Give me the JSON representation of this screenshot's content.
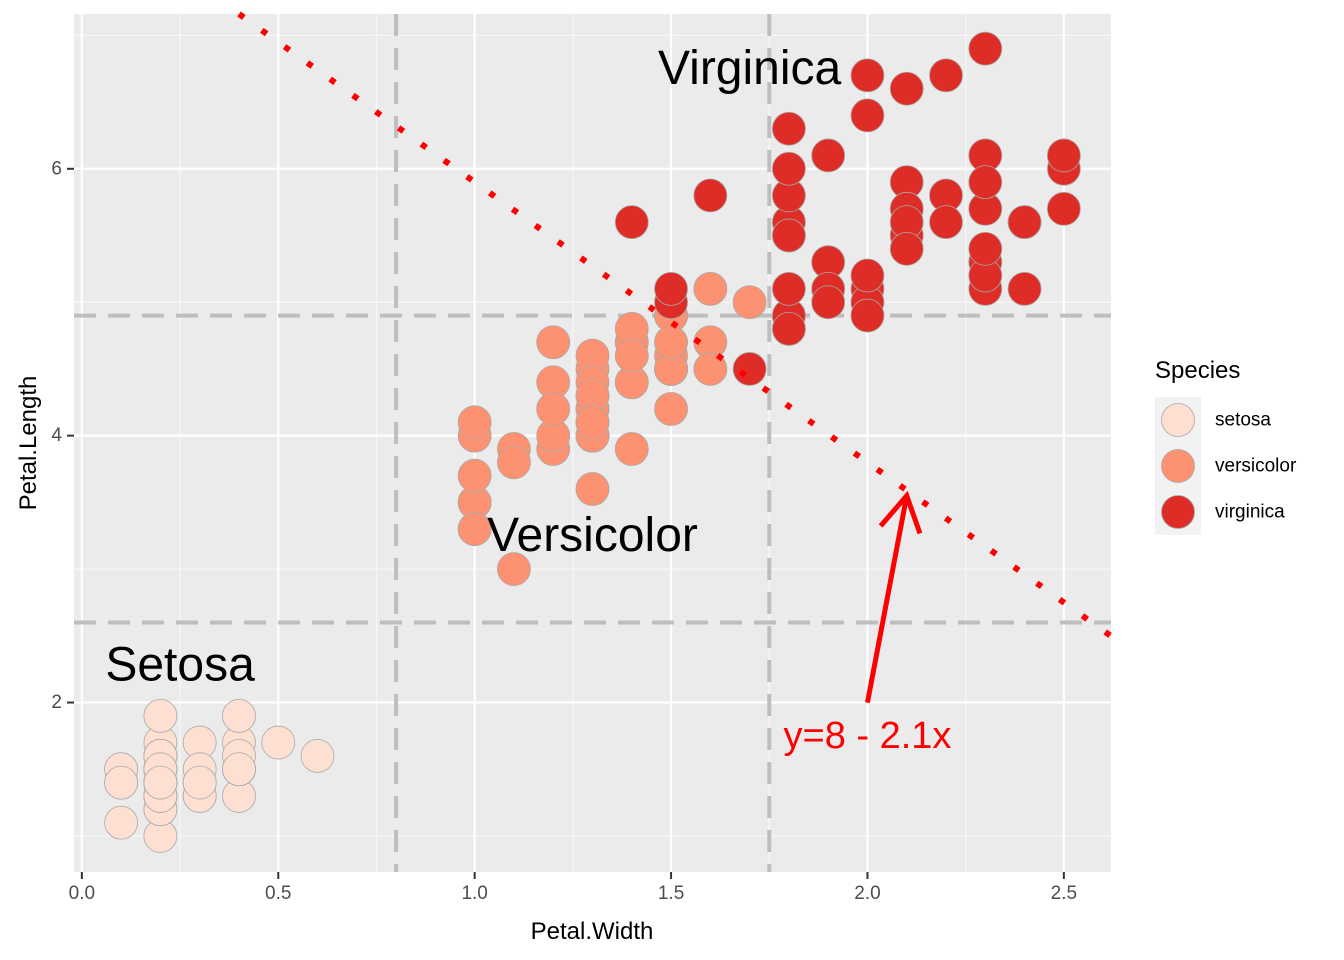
{
  "chart_data": {
    "type": "scatter",
    "xlabel": "Petal.Width",
    "ylabel": "Petal.Length",
    "xlim": [
      -0.02,
      2.62
    ],
    "ylim": [
      0.73,
      7.16
    ],
    "x_ticks": [
      0.0,
      0.5,
      1.0,
      1.5,
      2.0,
      2.5
    ],
    "x_tick_labels": [
      "0.0",
      "0.5",
      "1.0",
      "1.5",
      "2.0",
      "2.5"
    ],
    "y_ticks": [
      2,
      4,
      6
    ],
    "y_tick_labels": [
      "2",
      "4",
      "6"
    ],
    "grid": true,
    "legend": {
      "title": "Species",
      "placement": "right",
      "entries": [
        {
          "label": "setosa",
          "color": "#FEE0D2"
        },
        {
          "label": "versicolor",
          "color": "#FC9272"
        },
        {
          "label": "virginica",
          "color": "#DE2D26"
        }
      ]
    },
    "series": [
      {
        "name": "setosa",
        "color": "#FEE0D2",
        "points": [
          [
            0.2,
            1.4
          ],
          [
            0.2,
            1.4
          ],
          [
            0.2,
            1.3
          ],
          [
            0.2,
            1.5
          ],
          [
            0.2,
            1.4
          ],
          [
            0.4,
            1.7
          ],
          [
            0.3,
            1.4
          ],
          [
            0.2,
            1.5
          ],
          [
            0.2,
            1.4
          ],
          [
            0.1,
            1.5
          ],
          [
            0.2,
            1.5
          ],
          [
            0.2,
            1.6
          ],
          [
            0.1,
            1.4
          ],
          [
            0.1,
            1.1
          ],
          [
            0.2,
            1.2
          ],
          [
            0.4,
            1.5
          ],
          [
            0.4,
            1.3
          ],
          [
            0.3,
            1.4
          ],
          [
            0.3,
            1.7
          ],
          [
            0.3,
            1.5
          ],
          [
            0.2,
            1.7
          ],
          [
            0.4,
            1.5
          ],
          [
            0.2,
            1.0
          ],
          [
            0.5,
            1.7
          ],
          [
            0.2,
            1.9
          ],
          [
            0.2,
            1.6
          ],
          [
            0.4,
            1.6
          ],
          [
            0.2,
            1.5
          ],
          [
            0.2,
            1.4
          ],
          [
            0.2,
            1.6
          ],
          [
            0.2,
            1.6
          ],
          [
            0.4,
            1.5
          ],
          [
            0.1,
            1.5
          ],
          [
            0.2,
            1.4
          ],
          [
            0.2,
            1.5
          ],
          [
            0.2,
            1.2
          ],
          [
            0.2,
            1.3
          ],
          [
            0.1,
            1.4
          ],
          [
            0.2,
            1.3
          ],
          [
            0.2,
            1.5
          ],
          [
            0.3,
            1.3
          ],
          [
            0.3,
            1.3
          ],
          [
            0.2,
            1.3
          ],
          [
            0.6,
            1.6
          ],
          [
            0.4,
            1.9
          ],
          [
            0.3,
            1.4
          ],
          [
            0.2,
            1.6
          ],
          [
            0.2,
            1.4
          ],
          [
            0.2,
            1.5
          ],
          [
            0.2,
            1.4
          ]
        ]
      },
      {
        "name": "versicolor",
        "color": "#FC9272",
        "points": [
          [
            1.4,
            4.7
          ],
          [
            1.5,
            4.5
          ],
          [
            1.5,
            4.9
          ],
          [
            1.3,
            4.0
          ],
          [
            1.5,
            4.6
          ],
          [
            1.3,
            4.5
          ],
          [
            1.6,
            4.7
          ],
          [
            1.0,
            3.3
          ],
          [
            1.3,
            4.6
          ],
          [
            1.4,
            3.9
          ],
          [
            1.0,
            3.5
          ],
          [
            1.5,
            4.2
          ],
          [
            1.0,
            4.0
          ],
          [
            1.4,
            4.7
          ],
          [
            1.3,
            3.6
          ],
          [
            1.4,
            4.4
          ],
          [
            1.5,
            4.5
          ],
          [
            1.0,
            4.1
          ],
          [
            1.5,
            4.5
          ],
          [
            1.1,
            3.9
          ],
          [
            1.8,
            4.8
          ],
          [
            1.3,
            4.0
          ],
          [
            1.5,
            4.9
          ],
          [
            1.2,
            4.7
          ],
          [
            1.3,
            4.3
          ],
          [
            1.4,
            4.4
          ],
          [
            1.4,
            4.8
          ],
          [
            1.7,
            5.0
          ],
          [
            1.5,
            4.5
          ],
          [
            1.0,
            3.5
          ],
          [
            1.1,
            3.8
          ],
          [
            1.0,
            3.7
          ],
          [
            1.2,
            3.9
          ],
          [
            1.6,
            5.1
          ],
          [
            1.5,
            4.5
          ],
          [
            1.6,
            4.5
          ],
          [
            1.5,
            4.7
          ],
          [
            1.3,
            4.4
          ],
          [
            1.3,
            4.1
          ],
          [
            1.3,
            4.0
          ],
          [
            1.2,
            4.4
          ],
          [
            1.4,
            4.6
          ],
          [
            1.2,
            4.0
          ],
          [
            1.0,
            3.3
          ],
          [
            1.3,
            4.2
          ],
          [
            1.2,
            4.2
          ],
          [
            1.3,
            4.2
          ],
          [
            1.3,
            4.3
          ],
          [
            1.1,
            3.0
          ],
          [
            1.3,
            4.1
          ]
        ]
      },
      {
        "name": "virginica",
        "color": "#DE2D26",
        "points": [
          [
            2.5,
            6.0
          ],
          [
            1.9,
            5.1
          ],
          [
            2.1,
            5.9
          ],
          [
            1.8,
            5.6
          ],
          [
            2.2,
            5.8
          ],
          [
            2.1,
            6.6
          ],
          [
            1.7,
            4.5
          ],
          [
            1.8,
            6.3
          ],
          [
            1.8,
            5.8
          ],
          [
            2.5,
            6.1
          ],
          [
            2.0,
            5.1
          ],
          [
            1.9,
            5.3
          ],
          [
            2.1,
            5.5
          ],
          [
            2.0,
            5.0
          ],
          [
            2.4,
            5.1
          ],
          [
            2.3,
            5.3
          ],
          [
            1.8,
            5.5
          ],
          [
            2.2,
            6.7
          ],
          [
            2.3,
            6.9
          ],
          [
            1.5,
            5.0
          ],
          [
            2.3,
            5.7
          ],
          [
            2.0,
            4.9
          ],
          [
            2.0,
            6.7
          ],
          [
            1.8,
            4.9
          ],
          [
            2.1,
            5.7
          ],
          [
            1.8,
            6.0
          ],
          [
            1.8,
            4.8
          ],
          [
            1.8,
            4.9
          ],
          [
            2.1,
            5.6
          ],
          [
            1.6,
            5.8
          ],
          [
            1.9,
            6.1
          ],
          [
            2.0,
            6.4
          ],
          [
            2.2,
            5.6
          ],
          [
            1.5,
            5.1
          ],
          [
            1.4,
            5.6
          ],
          [
            2.3,
            6.1
          ],
          [
            2.4,
            5.6
          ],
          [
            1.8,
            5.5
          ],
          [
            1.8,
            4.8
          ],
          [
            2.1,
            5.4
          ],
          [
            2.4,
            5.6
          ],
          [
            2.3,
            5.1
          ],
          [
            1.9,
            5.1
          ],
          [
            2.3,
            5.9
          ],
          [
            2.5,
            5.7
          ],
          [
            2.3,
            5.2
          ],
          [
            1.9,
            5.0
          ],
          [
            2.0,
            5.2
          ],
          [
            2.3,
            5.4
          ],
          [
            1.8,
            5.1
          ]
        ]
      }
    ],
    "reference_lines": {
      "vertical_x": [
        0.8,
        1.75
      ],
      "horizontal_y": [
        2.6,
        4.9
      ],
      "diagonal": {
        "intercept": 8,
        "slope": -2.1
      }
    },
    "annotations": [
      {
        "text": "Setosa",
        "x": 0.25,
        "y": 2.28
      },
      {
        "text": "Versicolor",
        "x": 1.3,
        "y": 3.25
      },
      {
        "text": "Virginica",
        "x": 1.7,
        "y": 6.75
      },
      {
        "text": "y=8 - 2.1x",
        "x": 2.0,
        "y": 1.75,
        "color": "#FF0000"
      }
    ],
    "arrow": {
      "from": [
        2.0,
        2.0
      ],
      "to": [
        2.1,
        3.55
      ],
      "color": "#FF0000"
    }
  }
}
